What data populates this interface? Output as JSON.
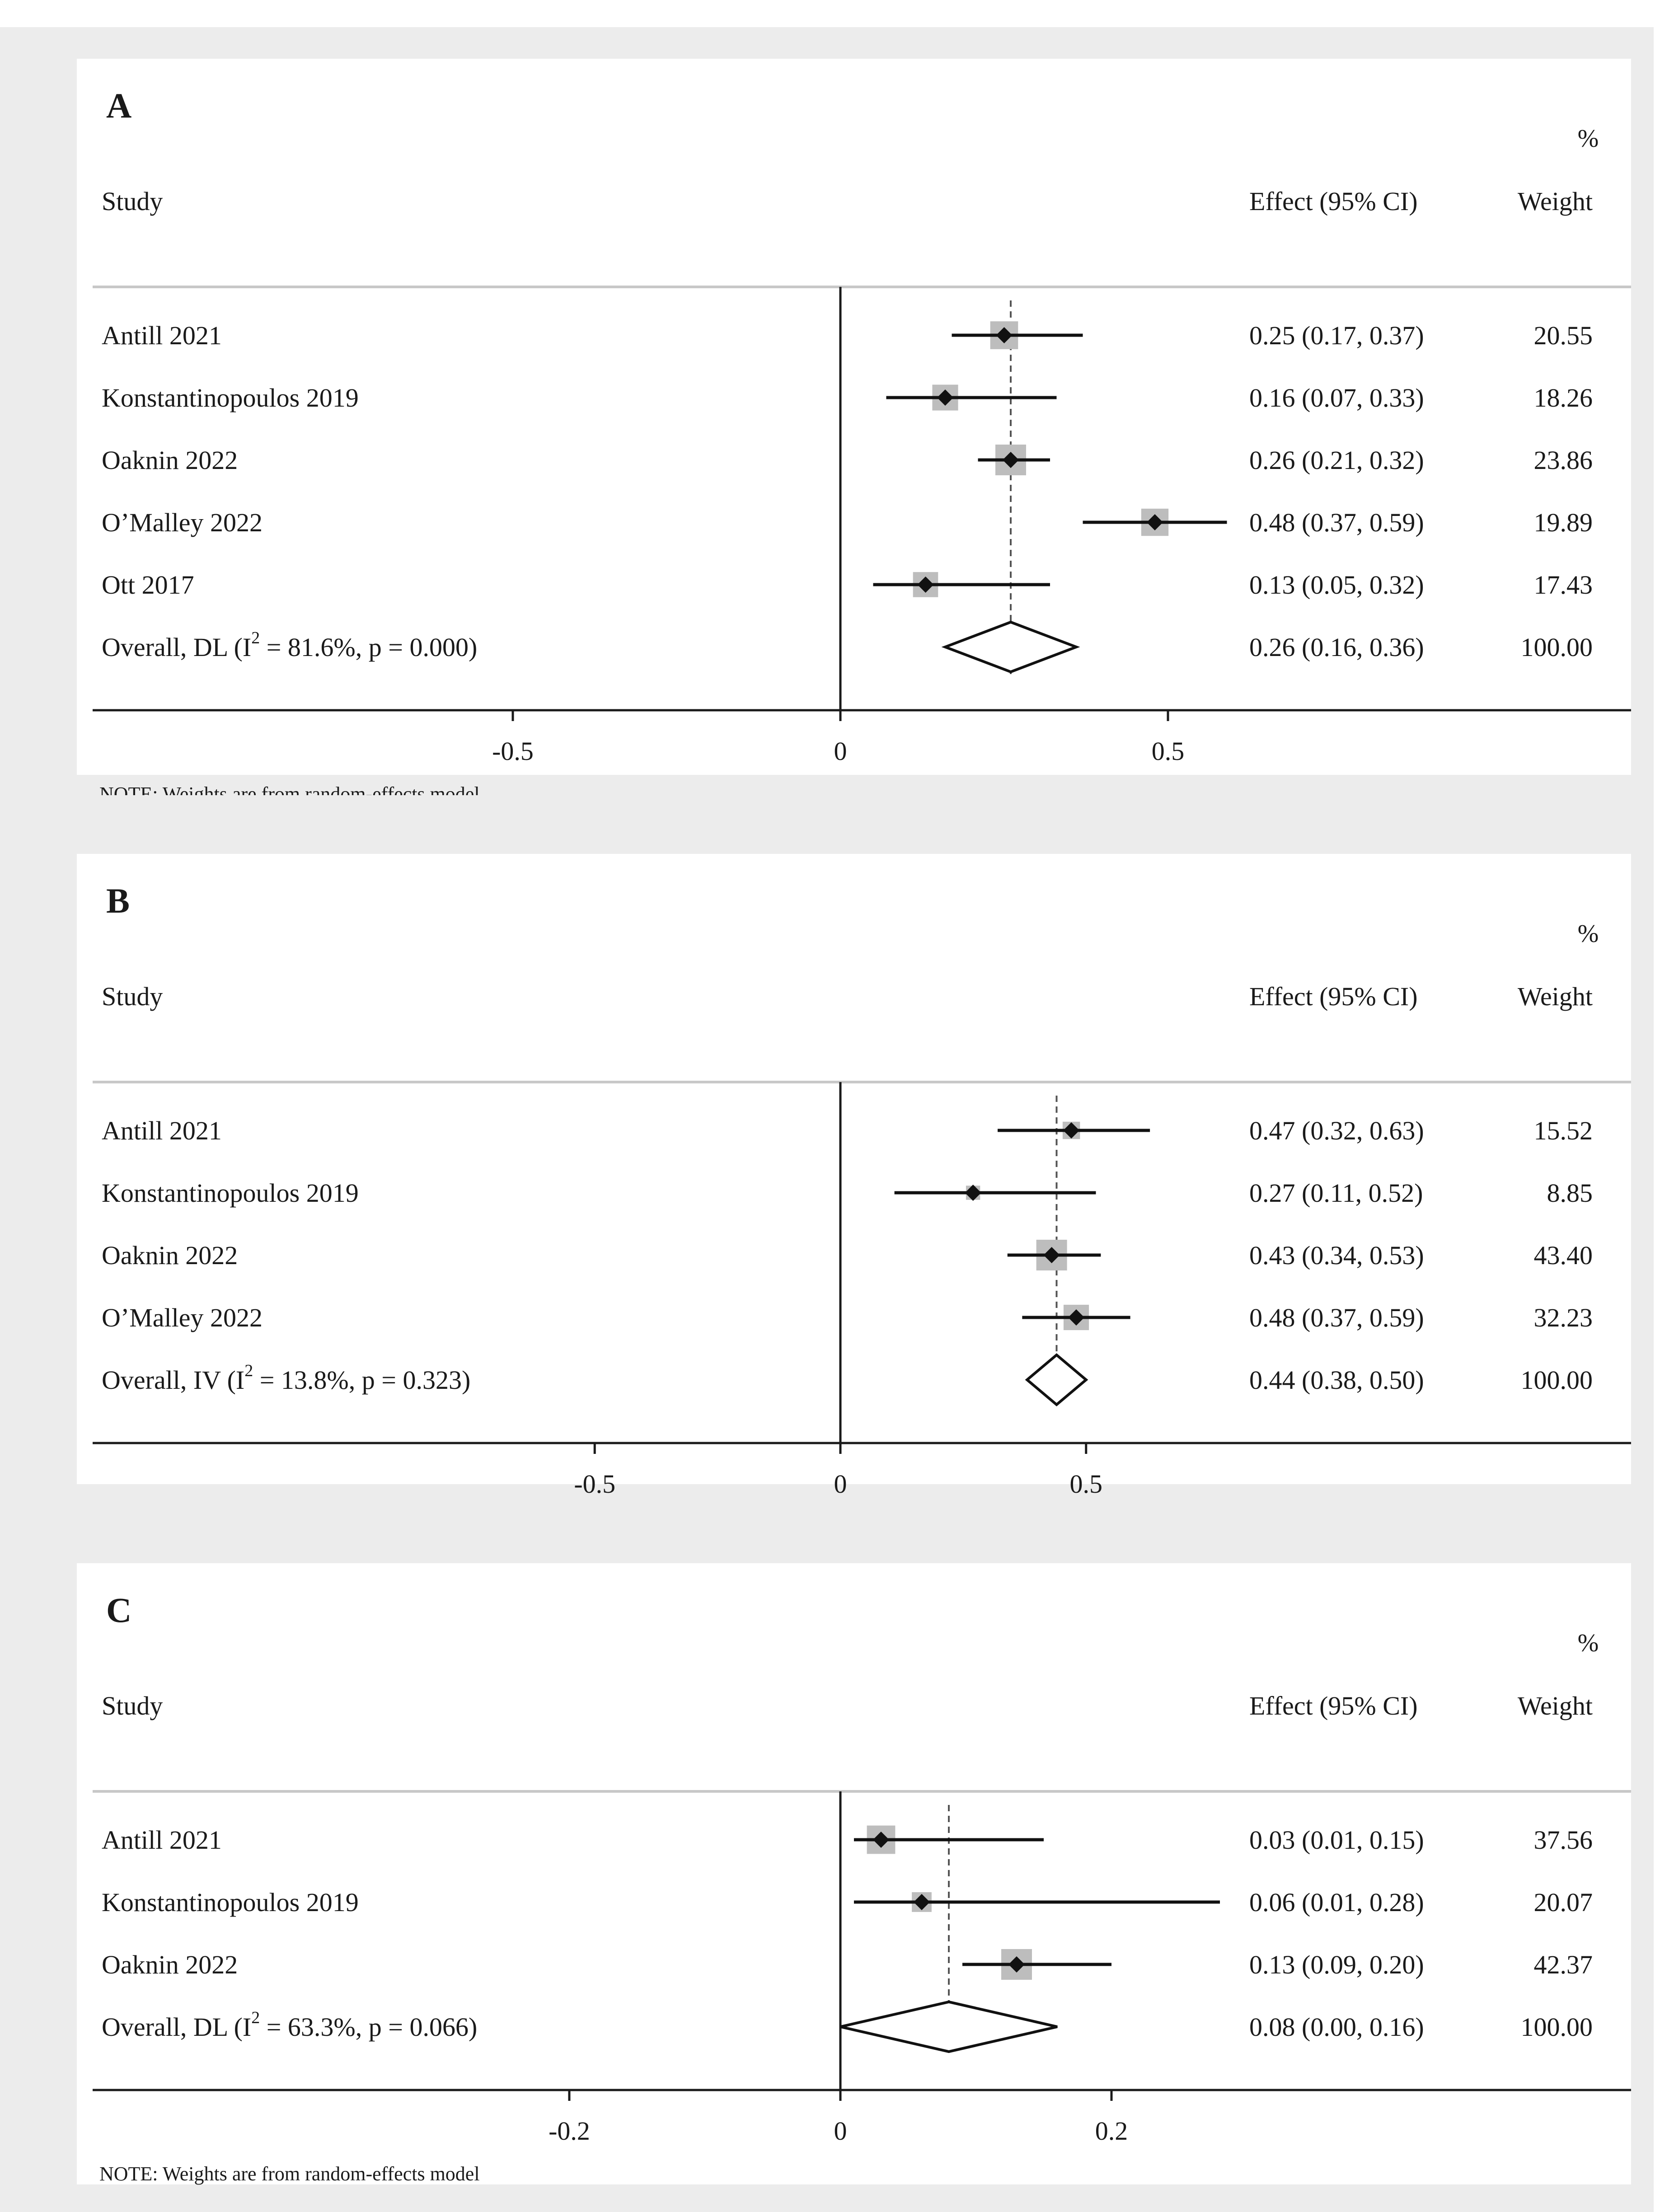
{
  "chart_data": [
    {
      "type": "forest",
      "panel_label": "A",
      "header": {
        "study": "Study",
        "effect": "Effect (95% CI)",
        "weight": "Weight",
        "weight_unit": "%"
      },
      "xlim": [
        -0.58,
        0.6
      ],
      "ticks": [
        {
          "value": -0.5,
          "label": "-0.5"
        },
        {
          "value": 0,
          "label": "0"
        },
        {
          "value": 0.5,
          "label": "0.5"
        }
      ],
      "studies": [
        {
          "name": "Antill 2021",
          "effect": 0.25,
          "lo": 0.17,
          "hi": 0.37,
          "label": "0.25 (0.17, 0.37)",
          "weight": "20.55",
          "w": 20.55
        },
        {
          "name": "Konstantinopoulos 2019",
          "effect": 0.16,
          "lo": 0.07,
          "hi": 0.33,
          "label": "0.16 (0.07, 0.33)",
          "weight": "18.26",
          "w": 18.26
        },
        {
          "name": "Oaknin 2022",
          "effect": 0.26,
          "lo": 0.21,
          "hi": 0.32,
          "label": "0.26 (0.21, 0.32)",
          "weight": "23.86",
          "w": 23.86
        },
        {
          "name": "O’Malley 2022",
          "effect": 0.48,
          "lo": 0.37,
          "hi": 0.59,
          "label": "0.48 (0.37, 0.59)",
          "weight": "19.89",
          "w": 19.89
        },
        {
          "name": "Ott 2017",
          "effect": 0.13,
          "lo": 0.05,
          "hi": 0.32,
          "label": "0.13 (0.05, 0.32)",
          "weight": "17.43",
          "w": 17.43
        }
      ],
      "overall": {
        "prefix": "Overall, DL (I",
        "sup": "2",
        "suffix": " = 81.6%, p = 0.000)",
        "effect": 0.26,
        "lo": 0.16,
        "hi": 0.36,
        "label": "0.26 (0.16, 0.36)",
        "weight": "100.00"
      },
      "note": "NOTE: Weights are from random-effects model"
    },
    {
      "type": "forest",
      "panel_label": "B",
      "header": {
        "study": "Study",
        "effect": "Effect (95% CI)",
        "weight": "Weight",
        "weight_unit": "%"
      },
      "xlim": [
        -0.7,
        0.8
      ],
      "ticks": [
        {
          "value": -0.5,
          "label": "-0.5"
        },
        {
          "value": 0,
          "label": "0"
        },
        {
          "value": 0.5,
          "label": "0.5"
        }
      ],
      "studies": [
        {
          "name": "Antill 2021",
          "effect": 0.47,
          "lo": 0.32,
          "hi": 0.63,
          "label": "0.47 (0.32, 0.63)",
          "weight": "15.52",
          "w": 15.52
        },
        {
          "name": "Konstantinopoulos 2019",
          "effect": 0.27,
          "lo": 0.11,
          "hi": 0.52,
          "label": "0.27 (0.11, 0.52)",
          "weight": "8.85",
          "w": 8.85
        },
        {
          "name": "Oaknin 2022",
          "effect": 0.43,
          "lo": 0.34,
          "hi": 0.53,
          "label": "0.43 (0.34, 0.53)",
          "weight": "43.40",
          "w": 43.4
        },
        {
          "name": "O’Malley 2022",
          "effect": 0.48,
          "lo": 0.37,
          "hi": 0.59,
          "label": "0.48 (0.37, 0.59)",
          "weight": "32.23",
          "w": 32.23
        }
      ],
      "overall": {
        "prefix": "Overall, IV (I",
        "sup": "2",
        "suffix": " = 13.8%, p = 0.323)",
        "effect": 0.44,
        "lo": 0.38,
        "hi": 0.5,
        "label": "0.44 (0.38, 0.50)",
        "weight": "100.00"
      },
      "note": ""
    },
    {
      "type": "forest",
      "panel_label": "C",
      "header": {
        "study": "Study",
        "effect": "Effect (95% CI)",
        "weight": "Weight",
        "weight_unit": "%"
      },
      "xlim": [
        -0.28,
        0.29
      ],
      "ticks": [
        {
          "value": -0.2,
          "label": "-0.2"
        },
        {
          "value": 0,
          "label": "0"
        },
        {
          "value": 0.2,
          "label": "0.2"
        }
      ],
      "studies": [
        {
          "name": "Antill 2021",
          "effect": 0.03,
          "lo": 0.01,
          "hi": 0.15,
          "label": "0.03 (0.01, 0.15)",
          "weight": "37.56",
          "w": 37.56
        },
        {
          "name": "Konstantinopoulos 2019",
          "effect": 0.06,
          "lo": 0.01,
          "hi": 0.28,
          "label": "0.06 (0.01, 0.28)",
          "weight": "20.07",
          "w": 20.07
        },
        {
          "name": "Oaknin 2022",
          "effect": 0.13,
          "lo": 0.09,
          "hi": 0.2,
          "label": "0.13 (0.09, 0.20)",
          "weight": "42.37",
          "w": 42.37
        }
      ],
      "overall": {
        "prefix": "Overall, DL (I",
        "sup": "2",
        "suffix": " = 63.3%, p = 0.066)",
        "effect": 0.08,
        "lo": 0.0,
        "hi": 0.16,
        "label": "0.08 (0.00, 0.16)",
        "weight": "100.00"
      },
      "note": "NOTE: Weights are from random-effects model"
    }
  ]
}
